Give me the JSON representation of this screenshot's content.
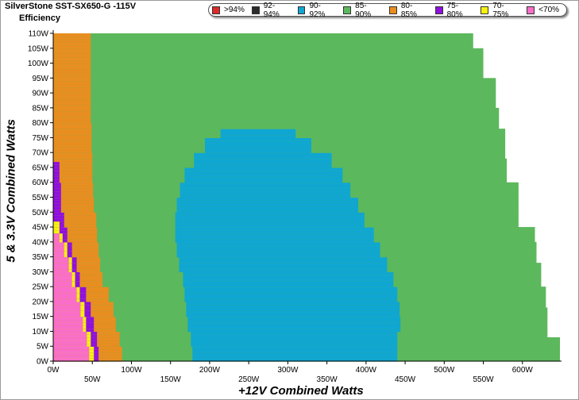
{
  "title": "SilverStone SST-SX650-G -115V",
  "subtitle": "Efficiency",
  "colors": {
    "gt94": "#dd2a2a",
    "92_94": "#2b2b2b",
    "90_92": "#0fa6d1",
    "85_90": "#5cb85c",
    "80_85": "#e88e20",
    "75_80": "#8f0fdf",
    "70_75": "#f8f20e",
    "lt70": "#fa6ec8"
  },
  "chart_data": {
    "type": "heatmap",
    "title": "SilverStone SST-SX650-G -115V",
    "subtitle": "Efficiency",
    "xlabel": "+12V Combined Watts",
    "ylabel": "5 & 3.3V Combined Watts",
    "xlim": [
      0,
      650
    ],
    "ylim": [
      0,
      110
    ],
    "x_ticks": [
      "0W",
      "50W",
      "100W",
      "150W",
      "200W",
      "250W",
      "300W",
      "350W",
      "400W",
      "450W",
      "500W",
      "550W",
      "600W"
    ],
    "y_ticks": [
      "0W",
      "5W",
      "10W",
      "15W",
      "20W",
      "25W",
      "30W",
      "35W",
      "40W",
      "45W",
      "50W",
      "55W",
      "60W",
      "65W",
      "70W",
      "75W",
      "80W",
      "85W",
      "90W",
      "95W",
      "100W",
      "105W",
      "110W"
    ],
    "legend": [
      {
        "label": ">94%",
        "color": "#dd2a2a"
      },
      {
        "label": "92-94%",
        "color": "#2b2b2b"
      },
      {
        "label": "90-92%",
        "color": "#0fa6d1"
      },
      {
        "label": "85-90%",
        "color": "#5cb85c"
      },
      {
        "label": "80-85%",
        "color": "#e88e20"
      },
      {
        "label": "75-80%",
        "color": "#8f0fdf"
      },
      {
        "label": "70-75%",
        "color": "#f8f20e"
      },
      {
        "label": "<70%",
        "color": "#fa6ec8"
      }
    ],
    "legend_position": "top-right",
    "boundaries": {
      "outer_max_x": [
        [
          0,
          648
        ],
        [
          5,
          648
        ],
        [
          8,
          632
        ],
        [
          15,
          632
        ],
        [
          18,
          630
        ],
        [
          22,
          630
        ],
        [
          25,
          624
        ],
        [
          30,
          624
        ],
        [
          33,
          618
        ],
        [
          38,
          618
        ],
        [
          40,
          616
        ],
        [
          45,
          595
        ],
        [
          55,
          595
        ],
        [
          60,
          580
        ],
        [
          68,
          578
        ],
        [
          70,
          578
        ],
        [
          78,
          570
        ],
        [
          85,
          566
        ],
        [
          90,
          566
        ],
        [
          95,
          550
        ],
        [
          100,
          550
        ],
        [
          105,
          537
        ],
        [
          110,
          537
        ]
      ],
      "orange_max_x": [
        [
          0,
          88
        ],
        [
          5,
          85
        ],
        [
          10,
          80
        ],
        [
          15,
          77
        ],
        [
          20,
          71
        ],
        [
          25,
          63
        ],
        [
          30,
          60
        ],
        [
          35,
          58
        ],
        [
          40,
          56
        ],
        [
          45,
          55
        ],
        [
          50,
          52
        ],
        [
          55,
          51
        ],
        [
          60,
          50
        ],
        [
          70,
          49
        ],
        [
          80,
          48
        ],
        [
          90,
          48
        ],
        [
          100,
          48
        ],
        [
          110,
          48
        ]
      ],
      "purple_max_x": [
        [
          0,
          58
        ],
        [
          5,
          56
        ],
        [
          10,
          52
        ],
        [
          15,
          48
        ],
        [
          20,
          42
        ],
        [
          25,
          34
        ],
        [
          30,
          30
        ],
        [
          35,
          24
        ],
        [
          40,
          18
        ],
        [
          45,
          14
        ],
        [
          50,
          10
        ],
        [
          55,
          10
        ],
        [
          60,
          8
        ],
        [
          65,
          8
        ],
        [
          67,
          6
        ]
      ],
      "yellow_max_x": [
        [
          0,
          52
        ],
        [
          5,
          48
        ],
        [
          10,
          42
        ],
        [
          15,
          40
        ],
        [
          20,
          34
        ],
        [
          25,
          28
        ],
        [
          30,
          24
        ],
        [
          35,
          18
        ],
        [
          40,
          12
        ],
        [
          43,
          8
        ],
        [
          47,
          6
        ]
      ],
      "pink_max_x": [
        [
          0,
          46
        ],
        [
          5,
          43
        ],
        [
          10,
          38
        ],
        [
          15,
          35
        ],
        [
          20,
          30
        ],
        [
          25,
          24
        ],
        [
          30,
          20
        ],
        [
          35,
          14
        ],
        [
          40,
          8
        ],
        [
          43,
          4
        ]
      ],
      "blue_region": [
        [
          0,
          178,
          440
        ],
        [
          5,
          176,
          440
        ],
        [
          10,
          172,
          444
        ],
        [
          15,
          170,
          443
        ],
        [
          20,
          168,
          440
        ],
        [
          25,
          166,
          435
        ],
        [
          30,
          161,
          427
        ],
        [
          35,
          158,
          418
        ],
        [
          40,
          156,
          410
        ],
        [
          45,
          156,
          398
        ],
        [
          50,
          158,
          390
        ],
        [
          55,
          162,
          380
        ],
        [
          60,
          168,
          370
        ],
        [
          65,
          180,
          356
        ],
        [
          70,
          194,
          330
        ],
        [
          75,
          214,
          310
        ],
        [
          78,
          234,
          300
        ]
      ]
    }
  },
  "axes": {
    "xlabel": "+12V Combined Watts",
    "ylabel": "5 & 3.3V Combined Watts"
  }
}
